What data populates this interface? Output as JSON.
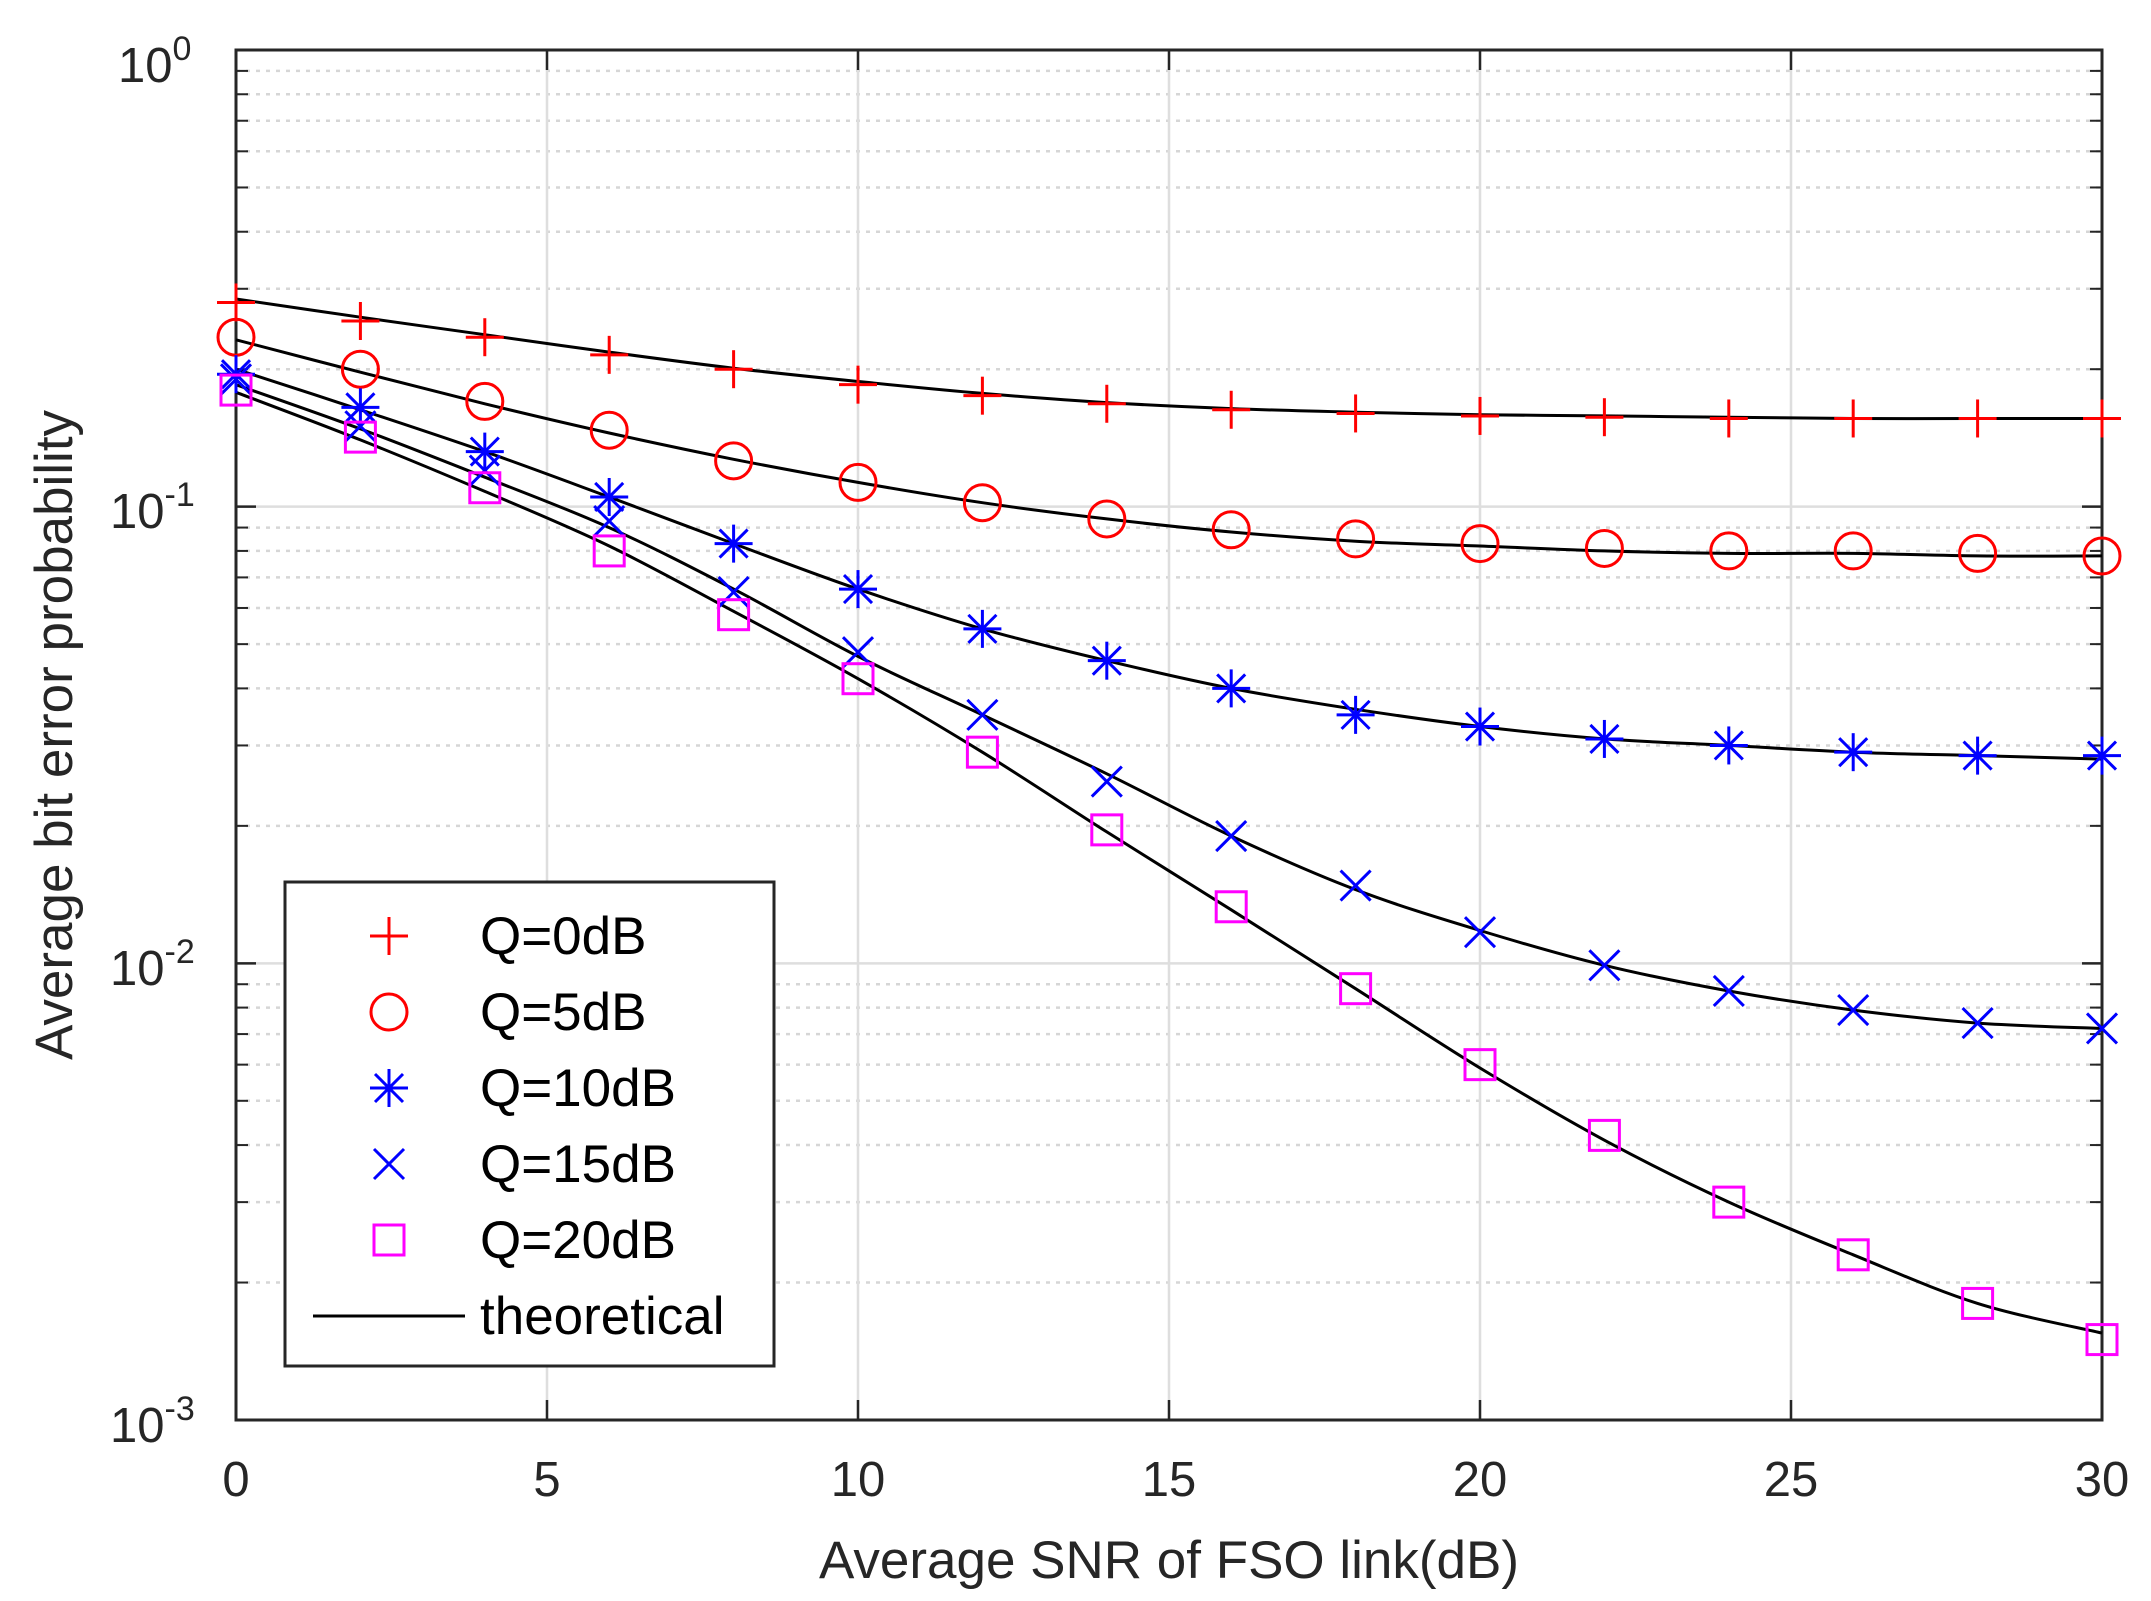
{
  "chart_data": {
    "type": "line",
    "xlabel": "Average SNR of FSO link(dB)",
    "ylabel": "Average bit error probability",
    "xlim": [
      0,
      30
    ],
    "ylim": [
      0.001,
      1
    ],
    "yscale": "log",
    "grid": true,
    "legend_position": "bottom-left",
    "x_ticks": [
      "0",
      "5",
      "10",
      "15",
      "20",
      "25",
      "30"
    ],
    "y_ticks": [
      {
        "base": "10",
        "exp": "0"
      },
      {
        "base": "10",
        "exp": "-1"
      },
      {
        "base": "10",
        "exp": "-2"
      },
      {
        "base": "10",
        "exp": "-3"
      }
    ],
    "x": [
      0,
      2,
      4,
      6,
      8,
      10,
      12,
      14,
      16,
      18,
      20,
      22,
      24,
      26,
      28,
      30
    ],
    "series": [
      {
        "name": "Q=0dB",
        "marker": "plus",
        "color": "#ff0000",
        "values": [
          0.28,
          0.255,
          0.235,
          0.215,
          0.2,
          0.185,
          0.175,
          0.168,
          0.163,
          0.16,
          0.158,
          0.157,
          0.156,
          0.156,
          0.156,
          0.156
        ]
      },
      {
        "name": "Q=5dB",
        "marker": "circle",
        "color": "#ff0000",
        "values": [
          0.235,
          0.2,
          0.17,
          0.147,
          0.126,
          0.113,
          0.102,
          0.094,
          0.089,
          0.085,
          0.083,
          0.081,
          0.08,
          0.08,
          0.079,
          0.078
        ]
      },
      {
        "name": "Q=10dB",
        "marker": "asterisk",
        "color": "#0000ff",
        "values": [
          0.195,
          0.165,
          0.132,
          0.105,
          0.083,
          0.066,
          0.054,
          0.046,
          0.04,
          0.035,
          0.033,
          0.031,
          0.03,
          0.029,
          0.0285,
          0.0285
        ]
      },
      {
        "name": "Q=15dB",
        "marker": "cross",
        "color": "#0000ff",
        "values": [
          0.19,
          0.15,
          0.12,
          0.093,
          0.065,
          0.048,
          0.035,
          0.025,
          0.019,
          0.0148,
          0.0117,
          0.0099,
          0.0087,
          0.0079,
          0.0074,
          0.0072
        ]
      },
      {
        "name": "Q=20dB",
        "marker": "square",
        "color": "#ff00ff",
        "values": [
          0.18,
          0.142,
          0.11,
          0.08,
          0.058,
          0.042,
          0.029,
          0.0196,
          0.0133,
          0.0088,
          0.006,
          0.0042,
          0.003,
          0.0023,
          0.0018,
          0.0015
        ]
      }
    ],
    "theoretical": {
      "name": "theoretical",
      "color": "#000000",
      "curves": [
        [
          0.285,
          0.26,
          0.238,
          0.218,
          0.201,
          0.188,
          0.177,
          0.169,
          0.164,
          0.161,
          0.159,
          0.158,
          0.157,
          0.156,
          0.156,
          0.156
        ],
        [
          0.232,
          0.197,
          0.168,
          0.145,
          0.127,
          0.113,
          0.102,
          0.094,
          0.088,
          0.084,
          0.082,
          0.08,
          0.079,
          0.079,
          0.078,
          0.078
        ],
        [
          0.2,
          0.163,
          0.132,
          0.105,
          0.083,
          0.066,
          0.054,
          0.046,
          0.04,
          0.036,
          0.033,
          0.031,
          0.03,
          0.029,
          0.0285,
          0.028
        ],
        [
          0.185,
          0.148,
          0.116,
          0.09,
          0.066,
          0.047,
          0.035,
          0.026,
          0.019,
          0.0145,
          0.0118,
          0.0099,
          0.0087,
          0.0079,
          0.0074,
          0.0072
        ],
        [
          0.178,
          0.14,
          0.108,
          0.082,
          0.059,
          0.042,
          0.029,
          0.0194,
          0.0131,
          0.0088,
          0.0059,
          0.0041,
          0.003,
          0.0023,
          0.0018,
          0.00155
        ]
      ]
    }
  }
}
